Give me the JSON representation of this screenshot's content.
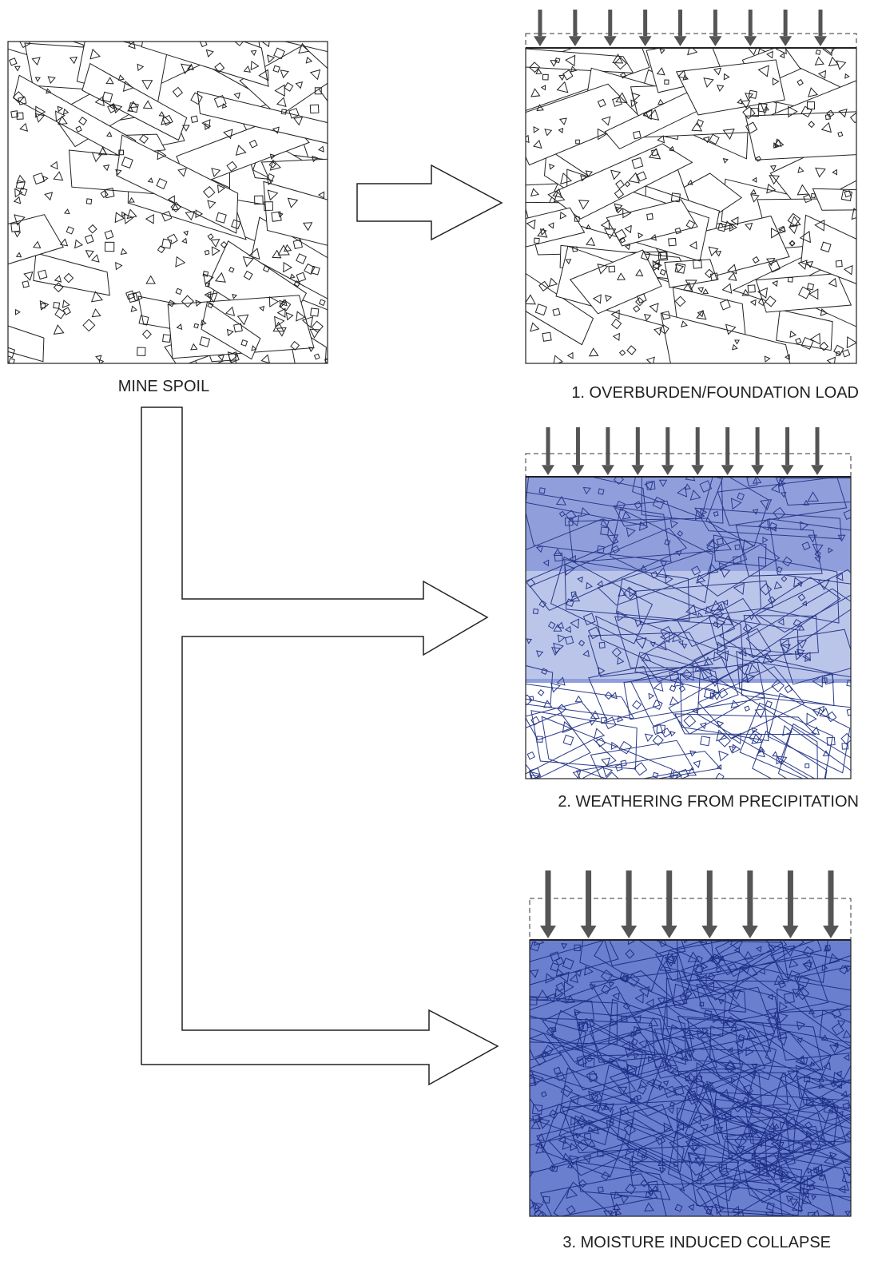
{
  "panels": [
    {
      "label": "MINE SPOIL"
    },
    {
      "label": "1. OVERBURDEN/FOUNDATION LOAD"
    },
    {
      "label": "2. WEATHERING FROM PRECIPITATION"
    },
    {
      "label": "3. MOISTURE INDUCED COLLAPSE"
    }
  ]
}
